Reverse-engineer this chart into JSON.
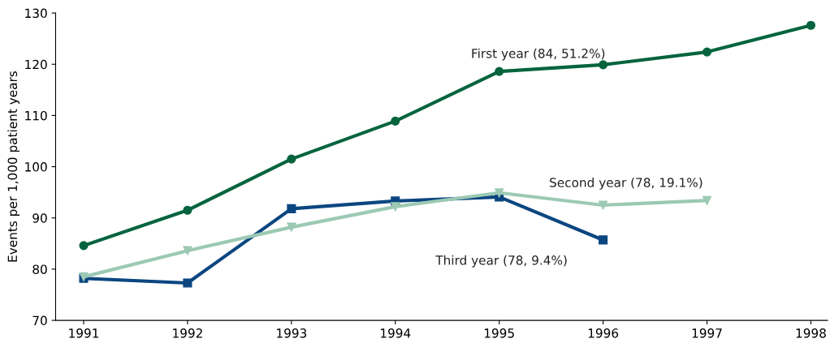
{
  "chart_data": {
    "type": "line",
    "ylabel": "Events per 1,000 patient years",
    "x": [
      1991,
      1992,
      1993,
      1994,
      1995,
      1996,
      1997,
      1998
    ],
    "series": [
      {
        "name": "First year (84, 51.2%)",
        "color": "#05643f",
        "marker": "circle",
        "values": [
          84.6,
          91.5,
          101.5,
          108.9,
          118.6,
          119.9,
          122.4,
          127.6
        ]
      },
      {
        "name": "Second year (78, 19.1%)",
        "color": "#9cc9b4",
        "marker": "triangle",
        "values": [
          78.5,
          83.6,
          88.2,
          92.2,
          94.9,
          92.5,
          93.4,
          null
        ]
      },
      {
        "name": "Third year (78, 9.4%)",
        "color": "#0b4680",
        "marker": "square",
        "values": [
          78.2,
          77.3,
          91.8,
          93.3,
          94.1,
          85.7,
          null,
          null
        ]
      }
    ],
    "xlim": [
      1990.73,
      1998.16
    ],
    "xticks": [
      1991,
      1992,
      1993,
      1994,
      1995,
      1996,
      1997,
      1998
    ],
    "ylim": [
      70,
      130
    ],
    "yticks": [
      70,
      80,
      90,
      100,
      110,
      120,
      130
    ],
    "grid": false,
    "legend": false,
    "line_style": "solid"
  }
}
